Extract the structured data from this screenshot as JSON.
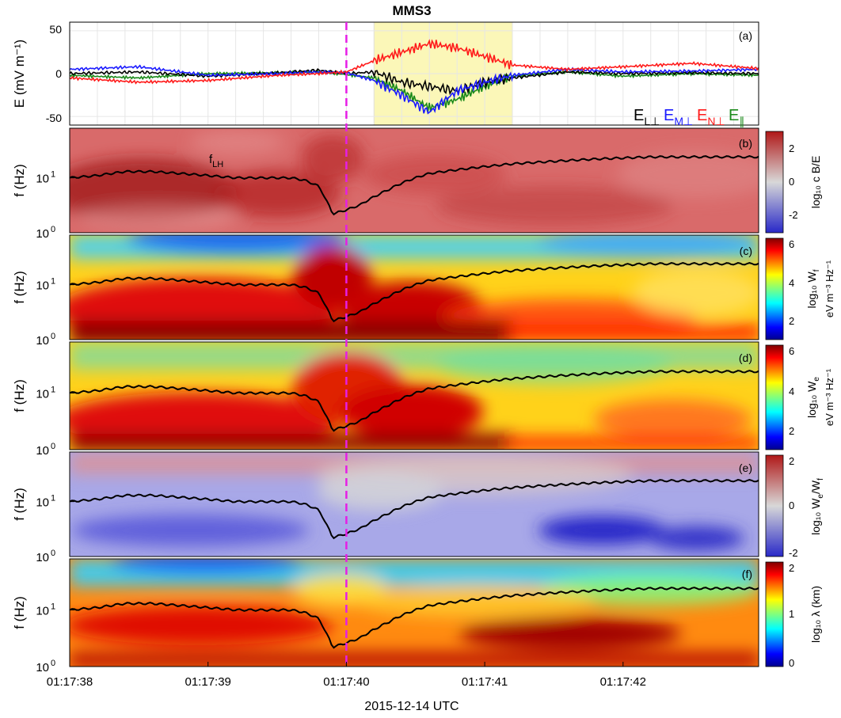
{
  "figure": {
    "title": "MMS3",
    "xlabel": "2015-12-14 UTC",
    "x_ticks": [
      "01:17:38",
      "01:17:39",
      "01:17:40",
      "01:17:41",
      "01:17:42"
    ]
  },
  "colors": {
    "E_L_perp": "#000000",
    "E_M_perp": "#1a1aff",
    "E_N_perp": "#ff1a1a",
    "E_par": "#1a8a1a",
    "highlight": "#fbf7b8",
    "marker": "#e61ee6",
    "f_LH": "#000000"
  },
  "panels": {
    "a": {
      "label": "(a)",
      "ylabel": "E (mV m⁻¹)",
      "yticks": [
        "50",
        "0",
        "-50"
      ],
      "legend": [
        "E",
        "L⊥",
        "E",
        "M⊥",
        "E",
        "N⊥",
        "E",
        "∥"
      ]
    },
    "b": {
      "label": "(b)",
      "ylabel": "f (Hz)",
      "annot": "f",
      "annot_sub": "LH",
      "colormap": "diverging",
      "cbar_ticks": [
        "2",
        "0",
        "-2"
      ],
      "cbar_label": "log₁₀ c B/E"
    },
    "c": {
      "label": "(c)",
      "ylabel": "f (Hz)",
      "colormap": "jet",
      "cbar_ticks": [
        "6",
        "4",
        "2"
      ],
      "cbar_label": "log₁₀ W",
      "cbar_sub": "f",
      "cbar_label2": "eV m⁻³ Hz⁻¹"
    },
    "d": {
      "label": "(d)",
      "ylabel": "f (Hz)",
      "colormap": "jet",
      "cbar_ticks": [
        "6",
        "4",
        "2"
      ],
      "cbar_label": "log₁₀ W",
      "cbar_sub": "e",
      "cbar_label2": "eV m⁻³ Hz⁻¹"
    },
    "e": {
      "label": "(e)",
      "ylabel": "f (Hz)",
      "colormap": "diverging",
      "cbar_ticks": [
        "2",
        "0",
        "-2"
      ],
      "cbar_label": "log₁₀ W",
      "cbar_sub": "e",
      "cbar_label_tail": "/W",
      "cbar_sub2": "f"
    },
    "f": {
      "label": "(f)",
      "ylabel": "f (Hz)",
      "colormap": "jet",
      "cbar_ticks": [
        "2",
        "1",
        "0"
      ],
      "cbar_label": "log₁₀ λ (km)"
    },
    "freq_ticks": [
      "10",
      "1",
      "10",
      "0"
    ]
  },
  "chart_data": {
    "type": "line",
    "x_unit": "s after 01:17:38 UT",
    "xlim": [
      0,
      4.98
    ],
    "highlight_interval": [
      2.2,
      3.2
    ],
    "marker_time": 2.0,
    "panel_a": {
      "ylim": [
        -60,
        60
      ],
      "series": [
        {
          "name": "EL⊥",
          "x": [
            0,
            0.5,
            1.0,
            1.5,
            1.8,
            2.0,
            2.2,
            2.4,
            2.6,
            2.8,
            3.0,
            3.2,
            3.6,
            4.0,
            4.5,
            4.98
          ],
          "values": [
            0,
            2,
            -3,
            1,
            4,
            0,
            2,
            -10,
            -15,
            -20,
            -10,
            -5,
            2,
            0,
            1,
            0
          ]
        },
        {
          "name": "EM⊥",
          "x": [
            0,
            0.5,
            1.0,
            1.5,
            1.8,
            2.0,
            2.2,
            2.4,
            2.6,
            2.8,
            3.0,
            3.2,
            3.6,
            4.0,
            4.5,
            4.98
          ],
          "values": [
            5,
            8,
            -2,
            0,
            2,
            1,
            -8,
            -25,
            -45,
            -20,
            -10,
            -2,
            5,
            2,
            3,
            5
          ]
        },
        {
          "name": "EN⊥",
          "x": [
            0,
            0.5,
            1.0,
            1.5,
            1.8,
            2.0,
            2.2,
            2.4,
            2.6,
            2.8,
            3.0,
            3.2,
            3.6,
            4.0,
            4.5,
            4.98
          ],
          "values": [
            -5,
            -10,
            -8,
            -2,
            0,
            2,
            15,
            25,
            35,
            30,
            20,
            10,
            5,
            8,
            12,
            6
          ]
        },
        {
          "name": "E∥",
          "x": [
            0,
            0.5,
            1.0,
            1.5,
            1.8,
            2.0,
            2.2,
            2.4,
            2.6,
            2.8,
            3.0,
            3.2,
            3.6,
            4.0,
            4.5,
            4.98
          ],
          "values": [
            -2,
            -5,
            0,
            1,
            2,
            -1,
            -5,
            -20,
            -40,
            -30,
            -15,
            -3,
            2,
            -3,
            0,
            -2
          ]
        }
      ]
    },
    "f_LH_Hz": {
      "x": [
        0,
        0.2,
        0.4,
        0.6,
        0.8,
        1.0,
        1.2,
        1.4,
        1.6,
        1.7,
        1.8,
        1.85,
        1.9,
        2.0,
        2.1,
        2.2,
        2.3,
        2.4,
        2.6,
        2.8,
        3.0,
        3.2,
        3.5,
        3.8,
        4.2,
        4.6,
        4.98
      ],
      "values": [
        10,
        11,
        13,
        13,
        12,
        11,
        10,
        10,
        10,
        9,
        7,
        4,
        2.2,
        2.6,
        3.2,
        4.5,
        6,
        8,
        12,
        14,
        16,
        18,
        20,
        22,
        24,
        24,
        24
      ]
    },
    "freq_ylim_Hz": [
      1,
      80
    ],
    "colorbar_ranges": {
      "b": [
        -3,
        3
      ],
      "c": [
        1,
        6
      ],
      "d": [
        1,
        6
      ],
      "e": [
        -2,
        2
      ],
      "f": [
        0,
        2
      ]
    }
  }
}
